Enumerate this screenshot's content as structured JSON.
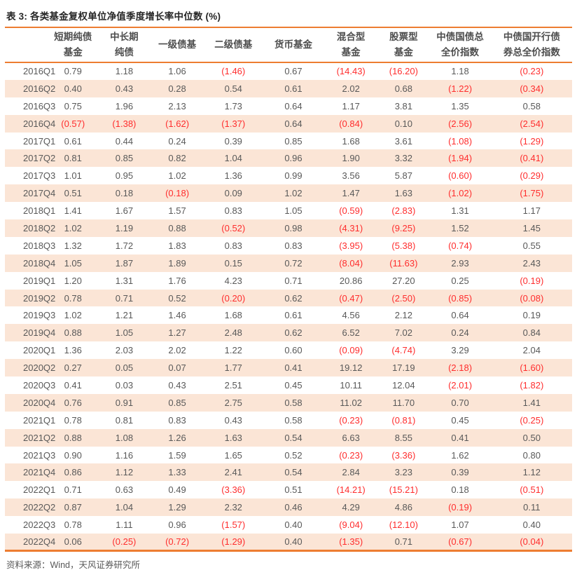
{
  "page": {
    "title": "表 3: 各类基金复权单位净值季度增长率中位数 (%)",
    "source_note": "资料来源：Wind，天风证券研究所"
  },
  "colors": {
    "accent_orange": "#ED7D31",
    "row_stripe": "#FBE5D6",
    "negative_red": "#FF2D2D",
    "body_text": "#595959",
    "title_text": "#262626"
  },
  "table": {
    "corner_label": "",
    "column_headers": [
      [
        "短期纯债",
        "基金"
      ],
      [
        "中长期",
        "纯债"
      ],
      [
        "一级债基"
      ],
      [
        "二级债基"
      ],
      [
        "货币基金"
      ],
      [
        "混合型",
        "基金"
      ],
      [
        "股票型",
        "基金"
      ],
      [
        "中债国债总",
        "全价指数"
      ],
      [
        "中债国开行债",
        "券总全价指数"
      ]
    ],
    "rows": [
      {
        "quarter": "2016Q1",
        "values": [
          "0.79",
          "1.18",
          "1.06",
          "(1.46)",
          "0.67",
          "(14.43)",
          "(16.20)",
          "1.18",
          "(0.23)"
        ]
      },
      {
        "quarter": "2016Q2",
        "values": [
          "0.40",
          "0.43",
          "0.28",
          "0.54",
          "0.61",
          "2.02",
          "0.68",
          "(1.22)",
          "(0.34)"
        ]
      },
      {
        "quarter": "2016Q3",
        "values": [
          "0.75",
          "1.96",
          "2.13",
          "1.73",
          "0.64",
          "1.17",
          "3.81",
          "1.35",
          "0.58"
        ]
      },
      {
        "quarter": "2016Q4",
        "values": [
          "(0.57)",
          "(1.38)",
          "(1.62)",
          "(1.37)",
          "0.64",
          "(0.84)",
          "0.10",
          "(2.56)",
          "(2.54)"
        ]
      },
      {
        "quarter": "2017Q1",
        "values": [
          "0.61",
          "0.44",
          "0.24",
          "0.39",
          "0.85",
          "1.68",
          "3.61",
          "(1.08)",
          "(1.29)"
        ]
      },
      {
        "quarter": "2017Q2",
        "values": [
          "0.81",
          "0.85",
          "0.82",
          "1.04",
          "0.96",
          "1.90",
          "3.32",
          "(1.94)",
          "(0.41)"
        ]
      },
      {
        "quarter": "2017Q3",
        "values": [
          "1.01",
          "0.95",
          "1.02",
          "1.36",
          "0.99",
          "3.56",
          "5.87",
          "(0.60)",
          "(0.29)"
        ]
      },
      {
        "quarter": "2017Q4",
        "values": [
          "0.51",
          "0.18",
          "(0.18)",
          "0.09",
          "1.02",
          "1.47",
          "1.63",
          "(1.02)",
          "(1.75)"
        ]
      },
      {
        "quarter": "2018Q1",
        "values": [
          "1.41",
          "1.67",
          "1.57",
          "0.83",
          "1.05",
          "(0.59)",
          "(2.83)",
          "1.31",
          "1.17"
        ]
      },
      {
        "quarter": "2018Q2",
        "values": [
          "1.02",
          "1.19",
          "0.88",
          "(0.52)",
          "0.98",
          "(4.31)",
          "(9.25)",
          "1.52",
          "1.45"
        ]
      },
      {
        "quarter": "2018Q3",
        "values": [
          "1.32",
          "1.72",
          "1.83",
          "0.83",
          "0.83",
          "(3.95)",
          "(5.38)",
          "(0.74)",
          "0.55"
        ]
      },
      {
        "quarter": "2018Q4",
        "values": [
          "1.05",
          "1.87",
          "1.89",
          "0.15",
          "0.72",
          "(8.04)",
          "(11.63)",
          "2.93",
          "2.43"
        ]
      },
      {
        "quarter": "2019Q1",
        "values": [
          "1.20",
          "1.31",
          "1.76",
          "4.23",
          "0.71",
          "20.86",
          "27.20",
          "0.25",
          "(0.19)"
        ]
      },
      {
        "quarter": "2019Q2",
        "values": [
          "0.78",
          "0.71",
          "0.52",
          "(0.20)",
          "0.62",
          "(0.47)",
          "(2.50)",
          "(0.85)",
          "(0.08)"
        ]
      },
      {
        "quarter": "2019Q3",
        "values": [
          "1.02",
          "1.21",
          "1.46",
          "1.68",
          "0.61",
          "4.56",
          "2.12",
          "0.64",
          "0.19"
        ]
      },
      {
        "quarter": "2019Q4",
        "values": [
          "0.88",
          "1.05",
          "1.27",
          "2.48",
          "0.62",
          "6.52",
          "7.02",
          "0.24",
          "0.84"
        ]
      },
      {
        "quarter": "2020Q1",
        "values": [
          "1.36",
          "2.03",
          "2.02",
          "1.22",
          "0.60",
          "(0.09)",
          "(4.74)",
          "3.29",
          "2.04"
        ]
      },
      {
        "quarter": "2020Q2",
        "values": [
          "0.27",
          "0.05",
          "0.07",
          "1.77",
          "0.41",
          "19.12",
          "17.19",
          "(2.18)",
          "(1.60)"
        ]
      },
      {
        "quarter": "2020Q3",
        "values": [
          "0.41",
          "0.03",
          "0.43",
          "2.51",
          "0.45",
          "10.11",
          "12.04",
          "(2.01)",
          "(1.82)"
        ]
      },
      {
        "quarter": "2020Q4",
        "values": [
          "0.76",
          "0.91",
          "0.85",
          "2.75",
          "0.58",
          "11.02",
          "11.70",
          "0.70",
          "1.41"
        ]
      },
      {
        "quarter": "2021Q1",
        "values": [
          "0.78",
          "0.81",
          "0.83",
          "0.43",
          "0.58",
          "(0.23)",
          "(0.81)",
          "0.45",
          "(0.25)"
        ]
      },
      {
        "quarter": "2021Q2",
        "values": [
          "0.88",
          "1.08",
          "1.26",
          "1.63",
          "0.54",
          "6.63",
          "8.55",
          "0.41",
          "0.50"
        ]
      },
      {
        "quarter": "2021Q3",
        "values": [
          "0.90",
          "1.16",
          "1.59",
          "1.65",
          "0.52",
          "(0.23)",
          "(3.36)",
          "1.62",
          "0.80"
        ]
      },
      {
        "quarter": "2021Q4",
        "values": [
          "0.86",
          "1.12",
          "1.33",
          "2.41",
          "0.54",
          "2.84",
          "3.23",
          "0.39",
          "1.12"
        ]
      },
      {
        "quarter": "2022Q1",
        "values": [
          "0.71",
          "0.63",
          "0.49",
          "(3.36)",
          "0.51",
          "(14.21)",
          "(15.21)",
          "0.18",
          "(0.51)"
        ]
      },
      {
        "quarter": "2022Q2",
        "values": [
          "0.87",
          "1.04",
          "1.29",
          "2.32",
          "0.46",
          "4.29",
          "4.86",
          "(0.19)",
          "0.11"
        ]
      },
      {
        "quarter": "2022Q3",
        "values": [
          "0.78",
          "1.11",
          "0.96",
          "(1.57)",
          "0.40",
          "(9.04)",
          "(12.10)",
          "1.07",
          "0.40"
        ]
      },
      {
        "quarter": "2022Q4",
        "values": [
          "0.06",
          "(0.25)",
          "(0.72)",
          "(1.29)",
          "0.40",
          "(1.35)",
          "0.71",
          "(0.67)",
          "(0.04)"
        ]
      }
    ]
  }
}
